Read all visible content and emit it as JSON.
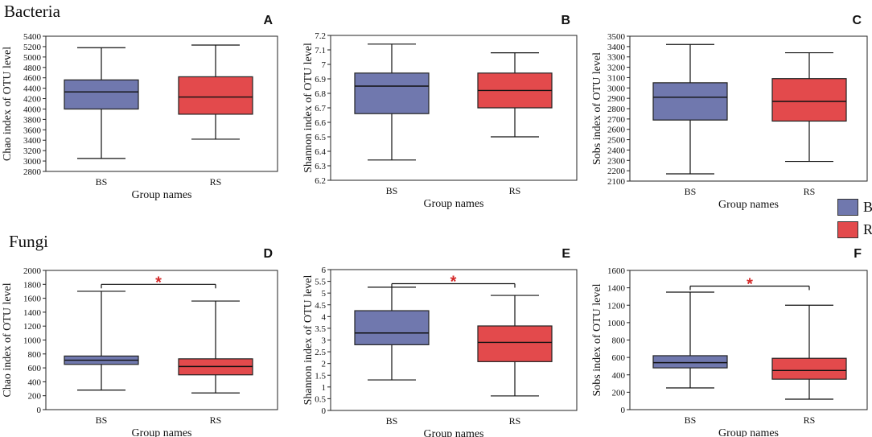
{
  "sections": {
    "bacteria": "Bacteria",
    "fungi": "Fungi"
  },
  "legend": [
    {
      "label": "BS",
      "color": "#7078ae"
    },
    {
      "label": "RS",
      "color": "#e34a4c"
    }
  ],
  "colors": {
    "BS": "#7078ae",
    "RS": "#e34a4c",
    "sig": "#d42a2a"
  },
  "chart_data": [
    {
      "panel": "A",
      "type": "box",
      "group": "Bacteria",
      "xlabel": "Group names",
      "ylabel": "Chao index of OTU level",
      "categories": [
        "BS",
        "RS"
      ],
      "ylim": [
        2800,
        5400
      ],
      "yticks": [
        2800,
        3000,
        3200,
        3400,
        3600,
        3800,
        4000,
        4200,
        4400,
        4600,
        4800,
        5000,
        5200,
        5400
      ],
      "ytick_labels": [
        "2800",
        "3000",
        "3200",
        "3400",
        "3600",
        "3800",
        "4000",
        "4200",
        "4400",
        "4600",
        "4800",
        "5000",
        "5200",
        "5400"
      ],
      "boxes": [
        {
          "name": "BS",
          "min": 3050,
          "q1": 4000,
          "median": 4330,
          "q3": 4560,
          "max": 5180
        },
        {
          "name": "RS",
          "min": 3420,
          "q1": 3900,
          "median": 4230,
          "q3": 4620,
          "max": 5230
        }
      ],
      "significance": null
    },
    {
      "panel": "B",
      "type": "box",
      "group": "Bacteria",
      "xlabel": "Group names",
      "ylabel": "Shannon index of OTU level",
      "categories": [
        "BS",
        "RS"
      ],
      "ylim": [
        6.2,
        7.2
      ],
      "yticks": [
        6.2,
        6.3,
        6.4,
        6.5,
        6.6,
        6.7,
        6.8,
        6.9,
        7.0,
        7.1,
        7.2
      ],
      "ytick_labels": [
        "6.2",
        "6.3",
        "6.4",
        "6.5",
        "6.6",
        "6.7",
        "6.8",
        "6.9",
        "7",
        "7.1",
        "7.2"
      ],
      "boxes": [
        {
          "name": "BS",
          "min": 6.34,
          "q1": 6.66,
          "median": 6.85,
          "q3": 6.94,
          "max": 7.14
        },
        {
          "name": "RS",
          "min": 6.5,
          "q1": 6.7,
          "median": 6.82,
          "q3": 6.94,
          "max": 7.08
        }
      ],
      "significance": null
    },
    {
      "panel": "C",
      "type": "box",
      "group": "Bacteria",
      "xlabel": "Group names",
      "ylabel": "Sobs index of OTU level",
      "categories": [
        "BS",
        "RS"
      ],
      "ylim": [
        2100,
        3500
      ],
      "yticks": [
        2100,
        2200,
        2300,
        2400,
        2500,
        2600,
        2700,
        2800,
        2900,
        3000,
        3100,
        3200,
        3300,
        3400,
        3500
      ],
      "ytick_labels": [
        "2100",
        "2200",
        "2300",
        "2400",
        "2500",
        "2600",
        "2700",
        "2800",
        "2900",
        "3000",
        "3100",
        "3200",
        "3300",
        "3400",
        "3500"
      ],
      "boxes": [
        {
          "name": "BS",
          "min": 2170,
          "q1": 2690,
          "median": 2910,
          "q3": 3050,
          "max": 3420
        },
        {
          "name": "RS",
          "min": 2290,
          "q1": 2680,
          "median": 2870,
          "q3": 3090,
          "max": 3340
        }
      ],
      "significance": null
    },
    {
      "panel": "D",
      "type": "box",
      "group": "Fungi",
      "xlabel": "Group names",
      "ylabel": "Chao index of OTU level",
      "categories": [
        "BS",
        "RS"
      ],
      "ylim": [
        0,
        2000
      ],
      "yticks": [
        0,
        200,
        400,
        600,
        800,
        1000,
        1200,
        1400,
        1600,
        1800,
        2000
      ],
      "ytick_labels": [
        "0",
        "200",
        "400",
        "600",
        "800",
        "1000",
        "1200",
        "1400",
        "1600",
        "1800",
        "2000"
      ],
      "boxes": [
        {
          "name": "BS",
          "min": 280,
          "q1": 650,
          "median": 710,
          "q3": 770,
          "max": 1700
        },
        {
          "name": "RS",
          "min": 240,
          "q1": 500,
          "median": 620,
          "q3": 730,
          "max": 1560
        }
      ],
      "significance": {
        "label": "*",
        "y": 1800
      }
    },
    {
      "panel": "E",
      "type": "box",
      "group": "Fungi",
      "xlabel": "Group names",
      "ylabel": "Shannon index of OTU level",
      "categories": [
        "BS",
        "RS"
      ],
      "ylim": [
        0,
        6
      ],
      "yticks": [
        0,
        0.5,
        1,
        1.5,
        2,
        2.5,
        3,
        3.5,
        4,
        4.5,
        5,
        5.5,
        6
      ],
      "ytick_labels": [
        "0",
        "0.5",
        "1",
        "1.5",
        "2",
        "2.5",
        "3",
        "3.5",
        "4",
        "4.5",
        "5",
        "5.5",
        "6"
      ],
      "boxes": [
        {
          "name": "BS",
          "min": 1.3,
          "q1": 2.8,
          "median": 3.3,
          "q3": 4.25,
          "max": 5.25
        },
        {
          "name": "RS",
          "min": 0.62,
          "q1": 2.08,
          "median": 2.9,
          "q3": 3.6,
          "max": 4.9
        }
      ],
      "significance": {
        "label": "*",
        "y": 5.4
      }
    },
    {
      "panel": "F",
      "type": "box",
      "group": "Fungi",
      "xlabel": "Group names",
      "ylabel": "Sobs index of OTU level",
      "categories": [
        "BS",
        "RS"
      ],
      "ylim": [
        0,
        1600
      ],
      "yticks": [
        0,
        200,
        400,
        600,
        800,
        1000,
        1200,
        1400,
        1600
      ],
      "ytick_labels": [
        "0",
        "200",
        "400",
        "600",
        "800",
        "1000",
        "1200",
        "1400",
        "1600"
      ],
      "boxes": [
        {
          "name": "BS",
          "min": 250,
          "q1": 480,
          "median": 540,
          "q3": 620,
          "max": 1350
        },
        {
          "name": "RS",
          "min": 120,
          "q1": 350,
          "median": 450,
          "q3": 590,
          "max": 1200
        }
      ],
      "significance": {
        "label": "*",
        "y": 1420
      }
    }
  ]
}
